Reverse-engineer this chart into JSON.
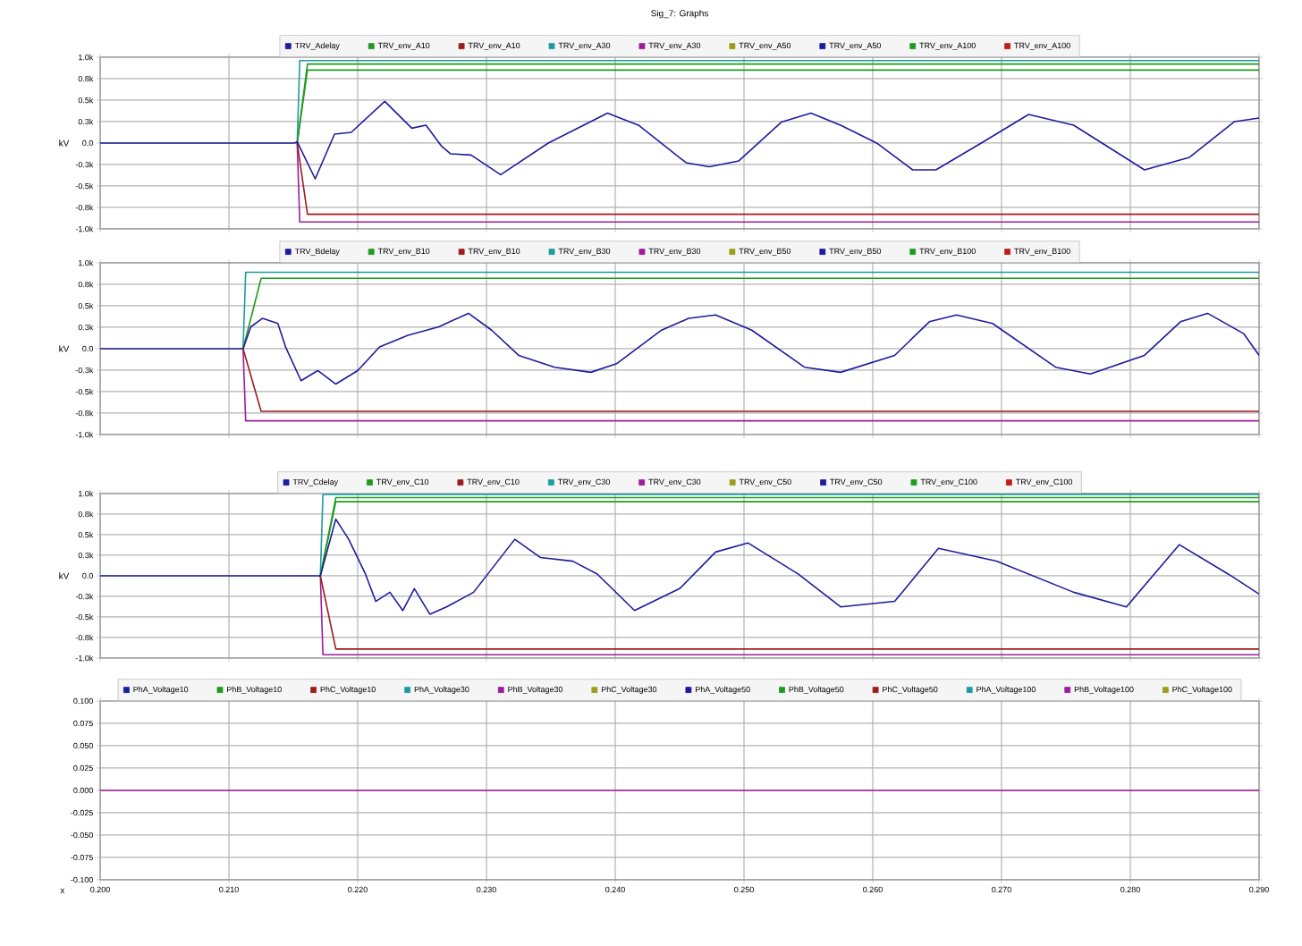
{
  "chart_data": [
    {
      "type": "line",
      "title": "Sig_7: Graphs",
      "ylabel": "kV",
      "xlim": [
        0.2,
        0.29
      ],
      "ylim": [
        -1000,
        1000
      ],
      "grid": true,
      "legend": "top",
      "tick_labels": "y",
      "line_style": "solid",
      "xticks": [
        0.2,
        0.21,
        0.22,
        0.23,
        0.24,
        0.25,
        0.26,
        0.27,
        0.28,
        0.29
      ],
      "yticks": [
        {
          "value": -1000,
          "label": "-1.0k"
        },
        {
          "value": -750,
          "label": "-0.8k"
        },
        {
          "value": -500,
          "label": "-0.5k"
        },
        {
          "value": -250,
          "label": "-0.3k"
        },
        {
          "value": 0,
          "label": "0.0"
        },
        {
          "value": 250,
          "label": "0.3k"
        },
        {
          "value": 500,
          "label": "0.5k"
        },
        {
          "value": 750,
          "label": "0.8k"
        },
        {
          "value": 1000,
          "label": "1.0k"
        }
      ],
      "series": [
        {
          "name": "TRV_Adelay",
          "color": "#1c1c9c",
          "x": [
            0.2,
            0.2151,
            0.2153,
            0.2167,
            0.2182,
            0.2195,
            0.2221,
            0.2242,
            0.2253,
            0.2265,
            0.2272,
            0.2288,
            0.2311,
            0.2348,
            0.2394,
            0.2418,
            0.2455,
            0.2473,
            0.2496,
            0.2529,
            0.2552,
            0.2575,
            0.2603,
            0.2631,
            0.2649,
            0.2686,
            0.2721,
            0.2756,
            0.2811,
            0.2846,
            0.2881,
            0.29
          ],
          "values": [
            0,
            0,
            15,
            -417,
            104,
            125,
            485,
            173,
            208,
            -35,
            -125,
            -140,
            -369,
            0,
            348,
            208,
            -229,
            -277,
            -208,
            244,
            348,
            208,
            0,
            -313,
            -313,
            15,
            333,
            208,
            -313,
            -167,
            250,
            292
          ]
        },
        {
          "name": "TRV_env_A10",
          "color": "#1f9a1f",
          "x": [
            0.2153,
            0.2161,
            0.29
          ],
          "values": [
            0,
            850,
            850
          ]
        },
        {
          "name": "TRV_env_A10",
          "color": "#9c1c1c",
          "x": [
            0.2153,
            0.2161,
            0.29
          ],
          "values": [
            0,
            -830,
            -830
          ]
        },
        {
          "name": "TRV_env_A30",
          "color": "#1c9c9c",
          "x": [
            0.2153,
            0.2155,
            0.29
          ],
          "values": [
            0,
            960,
            960
          ]
        },
        {
          "name": "TRV_env_A30",
          "color": "#9c1c9c",
          "x": [
            0.2153,
            0.2155,
            0.29
          ],
          "values": [
            0,
            -920,
            -920
          ]
        },
        {
          "name": "TRV_env_A50",
          "color": "#9c9c1c"
        },
        {
          "name": "TRV_env_A50",
          "color": "#1c1c9c"
        },
        {
          "name": "TRV_env_A100",
          "color": "#1f9a1f",
          "x": [
            0.2153,
            0.2161,
            0.29
          ],
          "values": [
            0,
            920,
            920
          ]
        },
        {
          "name": "TRV_env_A100",
          "color": "#c01c1c"
        }
      ]
    },
    {
      "type": "line",
      "ylabel": "kV",
      "xlim": [
        0.2,
        0.29
      ],
      "ylim": [
        -1000,
        1000
      ],
      "grid": true,
      "legend": "top",
      "tick_labels": "y",
      "line_style": "solid",
      "xticks": [
        0.2,
        0.21,
        0.22,
        0.23,
        0.24,
        0.25,
        0.26,
        0.27,
        0.28,
        0.29
      ],
      "yticks": [
        {
          "value": -1000,
          "label": "-1.0k"
        },
        {
          "value": -750,
          "label": "-0.8k"
        },
        {
          "value": -500,
          "label": "-0.5k"
        },
        {
          "value": -250,
          "label": "-0.3k"
        },
        {
          "value": 0,
          "label": "0.0"
        },
        {
          "value": 250,
          "label": "0.3k"
        },
        {
          "value": 500,
          "label": "0.5k"
        },
        {
          "value": 750,
          "label": "0.8k"
        },
        {
          "value": 1000,
          "label": "1.0k"
        }
      ],
      "series": [
        {
          "name": "TRV_Bdelay",
          "color": "#1c1c9c",
          "x": [
            0.2,
            0.2111,
            0.2117,
            0.2126,
            0.2138,
            0.2144,
            0.2156,
            0.2169,
            0.2183,
            0.22,
            0.2217,
            0.2239,
            0.2263,
            0.2286,
            0.2304,
            0.2325,
            0.2353,
            0.2381,
            0.2401,
            0.2436,
            0.2457,
            0.2478,
            0.2506,
            0.2547,
            0.2575,
            0.2617,
            0.2644,
            0.2665,
            0.2693,
            0.2742,
            0.2769,
            0.2811,
            0.2839,
            0.286,
            0.2888,
            0.29
          ],
          "values": [
            0,
            0,
            255,
            353,
            294,
            20,
            -373,
            -255,
            -412,
            -255,
            20,
            157,
            255,
            412,
            216,
            -78,
            -216,
            -275,
            -176,
            216,
            353,
            392,
            216,
            -216,
            -275,
            -78,
            314,
            392,
            294,
            -216,
            -294,
            -78,
            314,
            412,
            176,
            -78
          ]
        },
        {
          "name": "TRV_env_B10",
          "color": "#1f9a1f",
          "x": [
            0.2111,
            0.2125,
            0.29
          ],
          "values": [
            0,
            820,
            820
          ]
        },
        {
          "name": "TRV_env_B10",
          "color": "#9c1c1c",
          "x": [
            0.2111,
            0.2125,
            0.29
          ],
          "values": [
            0,
            -730,
            -730
          ]
        },
        {
          "name": "TRV_env_B30",
          "color": "#1c9c9c",
          "x": [
            0.2111,
            0.2113,
            0.29
          ],
          "values": [
            0,
            890,
            890
          ]
        },
        {
          "name": "TRV_env_B30",
          "color": "#9c1c9c",
          "x": [
            0.2111,
            0.2113,
            0.29
          ],
          "values": [
            0,
            -840,
            -840
          ]
        },
        {
          "name": "TRV_env_B50",
          "color": "#9c9c1c"
        },
        {
          "name": "TRV_env_B50",
          "color": "#1c1c9c"
        },
        {
          "name": "TRV_env_B100",
          "color": "#1f9a1f"
        },
        {
          "name": "TRV_env_B100",
          "color": "#c01c1c"
        }
      ]
    },
    {
      "type": "line",
      "ylabel": "kV",
      "xlim": [
        0.2,
        0.29
      ],
      "ylim": [
        -1000,
        1000
      ],
      "grid": true,
      "legend": "top",
      "tick_labels": "y",
      "line_style": "solid",
      "xticks": [
        0.2,
        0.21,
        0.22,
        0.23,
        0.24,
        0.25,
        0.26,
        0.27,
        0.28,
        0.29
      ],
      "yticks": [
        {
          "value": -1000,
          "label": "-1.0k"
        },
        {
          "value": -750,
          "label": "-0.8k"
        },
        {
          "value": -500,
          "label": "-0.5k"
        },
        {
          "value": -250,
          "label": "-0.3k"
        },
        {
          "value": 0,
          "label": "0.0"
        },
        {
          "value": 250,
          "label": "0.3k"
        },
        {
          "value": 500,
          "label": "0.5k"
        },
        {
          "value": 750,
          "label": "0.8k"
        },
        {
          "value": 1000,
          "label": "1.0k"
        }
      ],
      "series": [
        {
          "name": "TRV_Cdelay",
          "color": "#1c1c9c",
          "x": [
            0.2,
            0.2171,
            0.2183,
            0.2193,
            0.2206,
            0.2214,
            0.2225,
            0.2235,
            0.2244,
            0.2256,
            0.2269,
            0.229,
            0.2322,
            0.2342,
            0.2367,
            0.2386,
            0.2415,
            0.245,
            0.2478,
            0.2503,
            0.2542,
            0.2575,
            0.2617,
            0.2651,
            0.2696,
            0.2756,
            0.2797,
            0.2838,
            0.2876,
            0.29
          ],
          "values": [
            0,
            0,
            689,
            444,
            22,
            -311,
            -200,
            -422,
            -156,
            -467,
            -378,
            -200,
            444,
            222,
            178,
            22,
            -422,
            -156,
            289,
            400,
            22,
            -378,
            -311,
            333,
            178,
            -200,
            -378,
            378,
            22,
            -222
          ]
        },
        {
          "name": "TRV_env_C10",
          "color": "#1f9a1f",
          "x": [
            0.2171,
            0.2183,
            0.29
          ],
          "values": [
            0,
            900,
            900
          ]
        },
        {
          "name": "TRV_env_C10",
          "color": "#9c1c1c",
          "x": [
            0.2171,
            0.2183,
            0.29
          ],
          "values": [
            0,
            -890,
            -890
          ]
        },
        {
          "name": "TRV_env_C30",
          "color": "#1c9c9c",
          "x": [
            0.2171,
            0.2173,
            0.29
          ],
          "values": [
            0,
            990,
            990
          ]
        },
        {
          "name": "TRV_env_C30",
          "color": "#9c1c9c",
          "x": [
            0.2171,
            0.2173,
            0.29
          ],
          "values": [
            0,
            -960,
            -960
          ]
        },
        {
          "name": "TRV_env_C50",
          "color": "#9c9c1c"
        },
        {
          "name": "TRV_env_C50",
          "color": "#1c1c9c"
        },
        {
          "name": "TRV_env_C100",
          "color": "#1f9a1f",
          "x": [
            0.2171,
            0.2183,
            0.29
          ],
          "values": [
            0,
            950,
            950
          ]
        },
        {
          "name": "TRV_env_C100",
          "color": "#c01c1c"
        }
      ]
    },
    {
      "type": "line",
      "xlabel": "x",
      "xlim": [
        0.2,
        0.29
      ],
      "ylim": [
        -0.1,
        0.1
      ],
      "grid": true,
      "legend": "top",
      "line_style": "solid",
      "xticks": [
        {
          "value": 0.2,
          "label": "0.200"
        },
        {
          "value": 0.21,
          "label": "0.210"
        },
        {
          "value": 0.22,
          "label": "0.220"
        },
        {
          "value": 0.23,
          "label": "0.230"
        },
        {
          "value": 0.24,
          "label": "0.240"
        },
        {
          "value": 0.25,
          "label": "0.250"
        },
        {
          "value": 0.26,
          "label": "0.260"
        },
        {
          "value": 0.27,
          "label": "0.270"
        },
        {
          "value": 0.28,
          "label": "0.280"
        },
        {
          "value": 0.29,
          "label": "0.290"
        }
      ],
      "yticks": [
        {
          "value": -0.1,
          "label": "-0.100"
        },
        {
          "value": -0.075,
          "label": "-0.075"
        },
        {
          "value": -0.05,
          "label": "-0.050"
        },
        {
          "value": -0.025,
          "label": "-0.025"
        },
        {
          "value": 0,
          "label": "0.000"
        },
        {
          "value": 0.025,
          "label": "0.025"
        },
        {
          "value": 0.05,
          "label": "0.050"
        },
        {
          "value": 0.075,
          "label": "0.075"
        },
        {
          "value": 0.1,
          "label": "0.100"
        }
      ],
      "series": [
        {
          "name": "PhA_Voltage10",
          "color": "#1c1c9c"
        },
        {
          "name": "PhB_Voltage10",
          "color": "#1f9a1f"
        },
        {
          "name": "PhC_Voltage10",
          "color": "#9c1c1c"
        },
        {
          "name": "PhA_Voltage30",
          "color": "#1c9c9c"
        },
        {
          "name": "PhB_Voltage30",
          "color": "#9c1c9c"
        },
        {
          "name": "PhC_Voltage30",
          "color": "#9c9c1c"
        },
        {
          "name": "PhA_Voltage50",
          "color": "#1c1c9c"
        },
        {
          "name": "PhB_Voltage50",
          "color": "#1f9a1f"
        },
        {
          "name": "PhC_Voltage50",
          "color": "#9c1c1c"
        },
        {
          "name": "PhA_Voltage100",
          "color": "#1c9c9c"
        },
        {
          "name": "PhB_Voltage100",
          "color": "#9c1c9c",
          "x": [
            0.2,
            0.29
          ],
          "values": [
            0,
            0
          ]
        },
        {
          "name": "PhC_Voltage100",
          "color": "#9c9c1c"
        }
      ]
    }
  ]
}
